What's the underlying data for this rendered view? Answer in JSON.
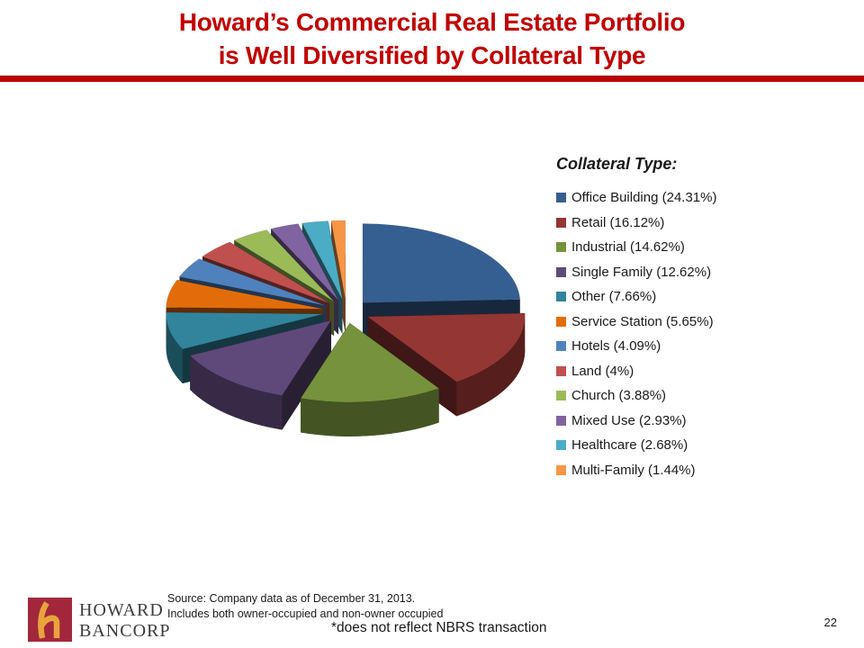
{
  "slide": {
    "title": {
      "line1": "Howard’s Commercial Real Estate Portfolio",
      "line2": "is Well Diversified by Collateral Type"
    },
    "page_number": "22",
    "footer": {
      "source_line1": "Source: Company data as of December 31, 2013.",
      "source_line2": "Includes both owner-occupied and non-owner occupied",
      "note": "*does not reflect NBRS transaction"
    },
    "logo": {
      "name_line1": "HOWARD",
      "name_line2": "BANCORP"
    }
  },
  "colors": {
    "title_red": "#C00000",
    "divider_red": "#C00000",
    "logo_red": "#A3273C",
    "logo_gold": "#E8A33D",
    "logo_text": "#3b3b3b",
    "text_dark": "#1a1a1a"
  },
  "chart_data": {
    "type": "pie",
    "style": "3d-exploded",
    "title": "",
    "legend_title": "Collateral Type:",
    "legend_position": "right",
    "start_angle_deg": -90,
    "direction": "clockwise",
    "slices": [
      {
        "label": "Office Building",
        "value": 24.31,
        "display": "Office Building (24.31%)",
        "color": "#365F91"
      },
      {
        "label": "Retail",
        "value": 16.12,
        "display": "Retail (16.12%)",
        "color": "#943634"
      },
      {
        "label": "Industrial",
        "value": 14.62,
        "display": "Industrial (14.62%)",
        "color": "#76923C"
      },
      {
        "label": "Single Family",
        "value": 12.62,
        "display": "Single Family (12.62%)",
        "color": "#5F497A"
      },
      {
        "label": "Other",
        "value": 7.66,
        "display": "Other (7.66%)",
        "color": "#31849B"
      },
      {
        "label": "Service Station",
        "value": 5.65,
        "display": "Service Station (5.65%)",
        "color": "#E36C0A"
      },
      {
        "label": "Hotels",
        "value": 4.09,
        "display": "Hotels (4.09%)",
        "color": "#4F81BD"
      },
      {
        "label": "Land",
        "value": 4.0,
        "display": "Land (4%)",
        "color": "#C0504D"
      },
      {
        "label": "Church",
        "value": 3.88,
        "display": "Church (3.88%)",
        "color": "#9BBB59"
      },
      {
        "label": "Mixed Use",
        "value": 2.93,
        "display": "Mixed Use (2.93%)",
        "color": "#8064A2"
      },
      {
        "label": "Healthcare",
        "value": 2.68,
        "display": "Healthcare (2.68%)",
        "color": "#4BACC6"
      },
      {
        "label": "Multi-Family",
        "value": 1.44,
        "display": "Multi-Family (1.44%)",
        "color": "#F79646"
      }
    ]
  }
}
